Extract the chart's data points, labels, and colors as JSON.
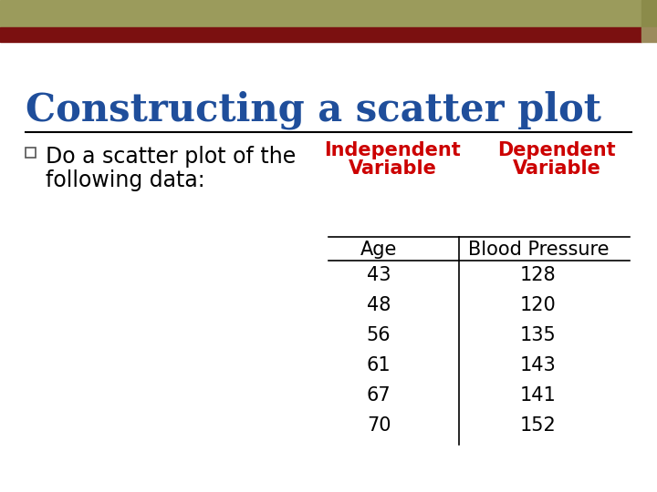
{
  "title": "Constructing a scatter plot",
  "title_color": "#1F4E9B",
  "title_fontsize": 30,
  "bullet_text_line1": "Do a scatter plot of the",
  "bullet_text_line2": "following data:",
  "bullet_text_color": "#000000",
  "bullet_fontsize": 17,
  "header_independent_line1": "Independent",
  "header_independent_line2": "Variable",
  "header_dependent_line1": "Dependent",
  "header_dependent_line2": "Variable",
  "header_color": "#CC0000",
  "header_fontsize": 15,
  "col1_header": "Age",
  "col2_header": "Blood Pressure",
  "col_header_fontsize": 15,
  "table_fontsize": 15,
  "ages": [
    43,
    48,
    56,
    61,
    67,
    70
  ],
  "blood_pressures": [
    128,
    120,
    135,
    143,
    141,
    152
  ],
  "background_color": "#FFFFFF",
  "top_bar_olive": "#9B9B5C",
  "top_bar_red": "#7B1010",
  "top_bar_olive2": "#8B8B4A",
  "top_bar_red2": "#6B0808",
  "horizontal_rule_color": "#000000",
  "fig_width": 7.2,
  "fig_height": 5.4,
  "dpi": 100
}
